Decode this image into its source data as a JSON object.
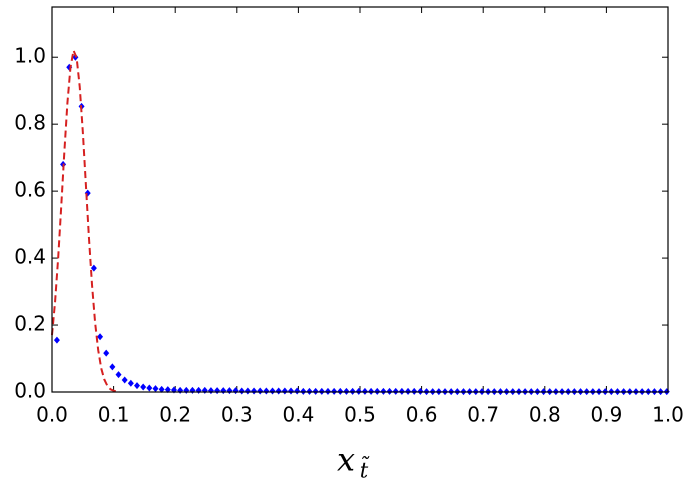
{
  "chart_data": {
    "type": "scatter",
    "xlabel": "x",
    "xlabel_subscript": "t̃",
    "xlim": [
      0,
      1
    ],
    "ylim": [
      0,
      1.15
    ],
    "xticks": [
      {
        "value": 0,
        "label": "0.0"
      },
      0.1,
      0.2,
      0.3,
      0.4,
      0.5,
      0.6,
      0.7,
      0.8,
      0.9,
      {
        "value": 1,
        "label": "1.0"
      }
    ],
    "yticks": [
      {
        "value": 0,
        "label": "0.0"
      },
      0.2,
      0.4,
      0.6,
      0.8,
      {
        "value": 1,
        "label": "1.0"
      }
    ],
    "grid": false,
    "series": [
      {
        "style": "points",
        "color": "#0000ff",
        "x": [
          0.008,
          0.018,
          0.028,
          0.038,
          0.048,
          0.058,
          0.068,
          0.078,
          0.088,
          0.098,
          0.108,
          0.118,
          0.128,
          0.138,
          0.148,
          0.158,
          0.168,
          0.178,
          0.188,
          0.198,
          0.208,
          0.218,
          0.228,
          0.238,
          0.248,
          0.258,
          0.268,
          0.278,
          0.288,
          0.298,
          0.308,
          0.318,
          0.328,
          0.338,
          0.348,
          0.358,
          0.368,
          0.378,
          0.388,
          0.398,
          0.408,
          0.418,
          0.428,
          0.438,
          0.448,
          0.458,
          0.468,
          0.478,
          0.488,
          0.498,
          0.508,
          0.518,
          0.528,
          0.538,
          0.548,
          0.558,
          0.568,
          0.578,
          0.588,
          0.598,
          0.608,
          0.618,
          0.628,
          0.638,
          0.648,
          0.658,
          0.668,
          0.678,
          0.688,
          0.698,
          0.708,
          0.718,
          0.728,
          0.738,
          0.748,
          0.758,
          0.768,
          0.778,
          0.788,
          0.798,
          0.808,
          0.818,
          0.828,
          0.838,
          0.848,
          0.858,
          0.868,
          0.878,
          0.888,
          0.898,
          0.908,
          0.918,
          0.928,
          0.938,
          0.948,
          0.958,
          0.968,
          0.978,
          0.988,
          0.998
        ],
        "values": [
          0.155,
          0.68,
          0.97,
          1.0,
          0.853,
          0.594,
          0.37,
          0.165,
          0.116,
          0.075,
          0.052,
          0.036,
          0.026,
          0.019,
          0.015,
          0.012,
          0.01,
          0.008,
          0.007,
          0.006,
          0.005,
          0.005,
          0.005,
          0.005,
          0.005,
          0.004,
          0.004,
          0.004,
          0.004,
          0.004,
          0.003,
          0.003,
          0.003,
          0.003,
          0.003,
          0.003,
          0.003,
          0.003,
          0.003,
          0.003,
          0.002,
          0.002,
          0.002,
          0.002,
          0.002,
          0.002,
          0.002,
          0.002,
          0.002,
          0.002,
          0.002,
          0.002,
          0.002,
          0.002,
          0.002,
          0.002,
          0.002,
          0.002,
          0.002,
          0.002,
          0.001,
          0.001,
          0.001,
          0.001,
          0.001,
          0.001,
          0.001,
          0.001,
          0.001,
          0.001,
          0.001,
          0.001,
          0.001,
          0.001,
          0.001,
          0.001,
          0.001,
          0.001,
          0.001,
          0.001,
          0.001,
          0.001,
          0.001,
          0.001,
          0.001,
          0.001,
          0.001,
          0.001,
          0.001,
          0.001,
          0.001,
          0.001,
          0.001,
          0.001,
          0.001,
          0.001,
          0.001,
          0.001,
          0.001,
          0.001
        ]
      },
      {
        "style": "dashed",
        "color": "#d62020",
        "x": [
          0,
          0.005,
          0.01,
          0.015,
          0.02,
          0.025,
          0.03,
          0.035,
          0.04,
          0.045,
          0.05,
          0.055,
          0.06,
          0.065,
          0.07,
          0.075,
          0.08,
          0.085,
          0.09,
          0.095,
          0.1,
          0.105,
          0.11
        ],
        "values": [
          0.17,
          0.27,
          0.4,
          0.555,
          0.716,
          0.863,
          0.97,
          1.02,
          0.998,
          0.912,
          0.778,
          0.619,
          0.46,
          0.319,
          0.207,
          0.125,
          0.07,
          0.037,
          0.018,
          0.008,
          0.004,
          0.001,
          0
        ]
      }
    ]
  }
}
